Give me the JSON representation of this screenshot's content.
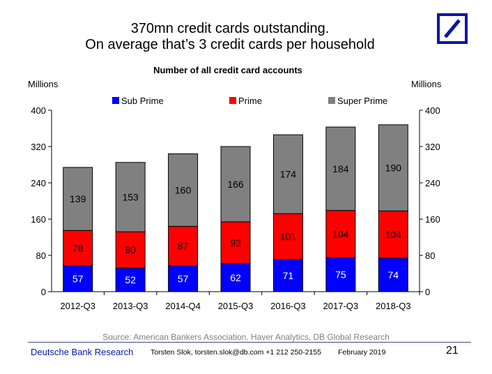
{
  "slide": {
    "title_line1": "370mn credit cards outstanding.",
    "title_line2": "On average that’s 3 credit cards per household",
    "source": "Source: American Bankers Association, Haver Analytics, DB Global Research",
    "brand": "Deutsche Bank Research",
    "author": "Torsten Slok, torsten.slok@db.com  +1 212 250-2155",
    "date": "February 2019",
    "page_number": "21"
  },
  "colors": {
    "sub_prime": "#0000ff",
    "prime": "#ff0000",
    "super_prime": "#808080",
    "logo_blue": "#0018a8"
  },
  "chart_data": {
    "type": "bar",
    "stacked": true,
    "title": "Number of all credit card accounts",
    "ylabel_left": "Millions",
    "ylabel_right": "Millions",
    "ylim": [
      0,
      400
    ],
    "yticks": [
      0,
      80,
      160,
      240,
      320,
      400
    ],
    "categories": [
      "2012-Q3",
      "2013-Q3",
      "2014-Q4",
      "2015-Q3",
      "2016-Q3",
      "2017-Q3",
      "2018-Q3"
    ],
    "series": [
      {
        "name": "Sub Prime",
        "color": "#0000ff",
        "values": [
          57,
          52,
          57,
          62,
          71,
          75,
          74
        ]
      },
      {
        "name": "Prime",
        "color": "#ff0000",
        "values": [
          78,
          80,
          87,
          92,
          101,
          104,
          104
        ]
      },
      {
        "name": "Super Prime",
        "color": "#808080",
        "values": [
          139,
          153,
          160,
          166,
          174,
          184,
          190
        ]
      }
    ],
    "legend_position": "top",
    "grid": false
  }
}
